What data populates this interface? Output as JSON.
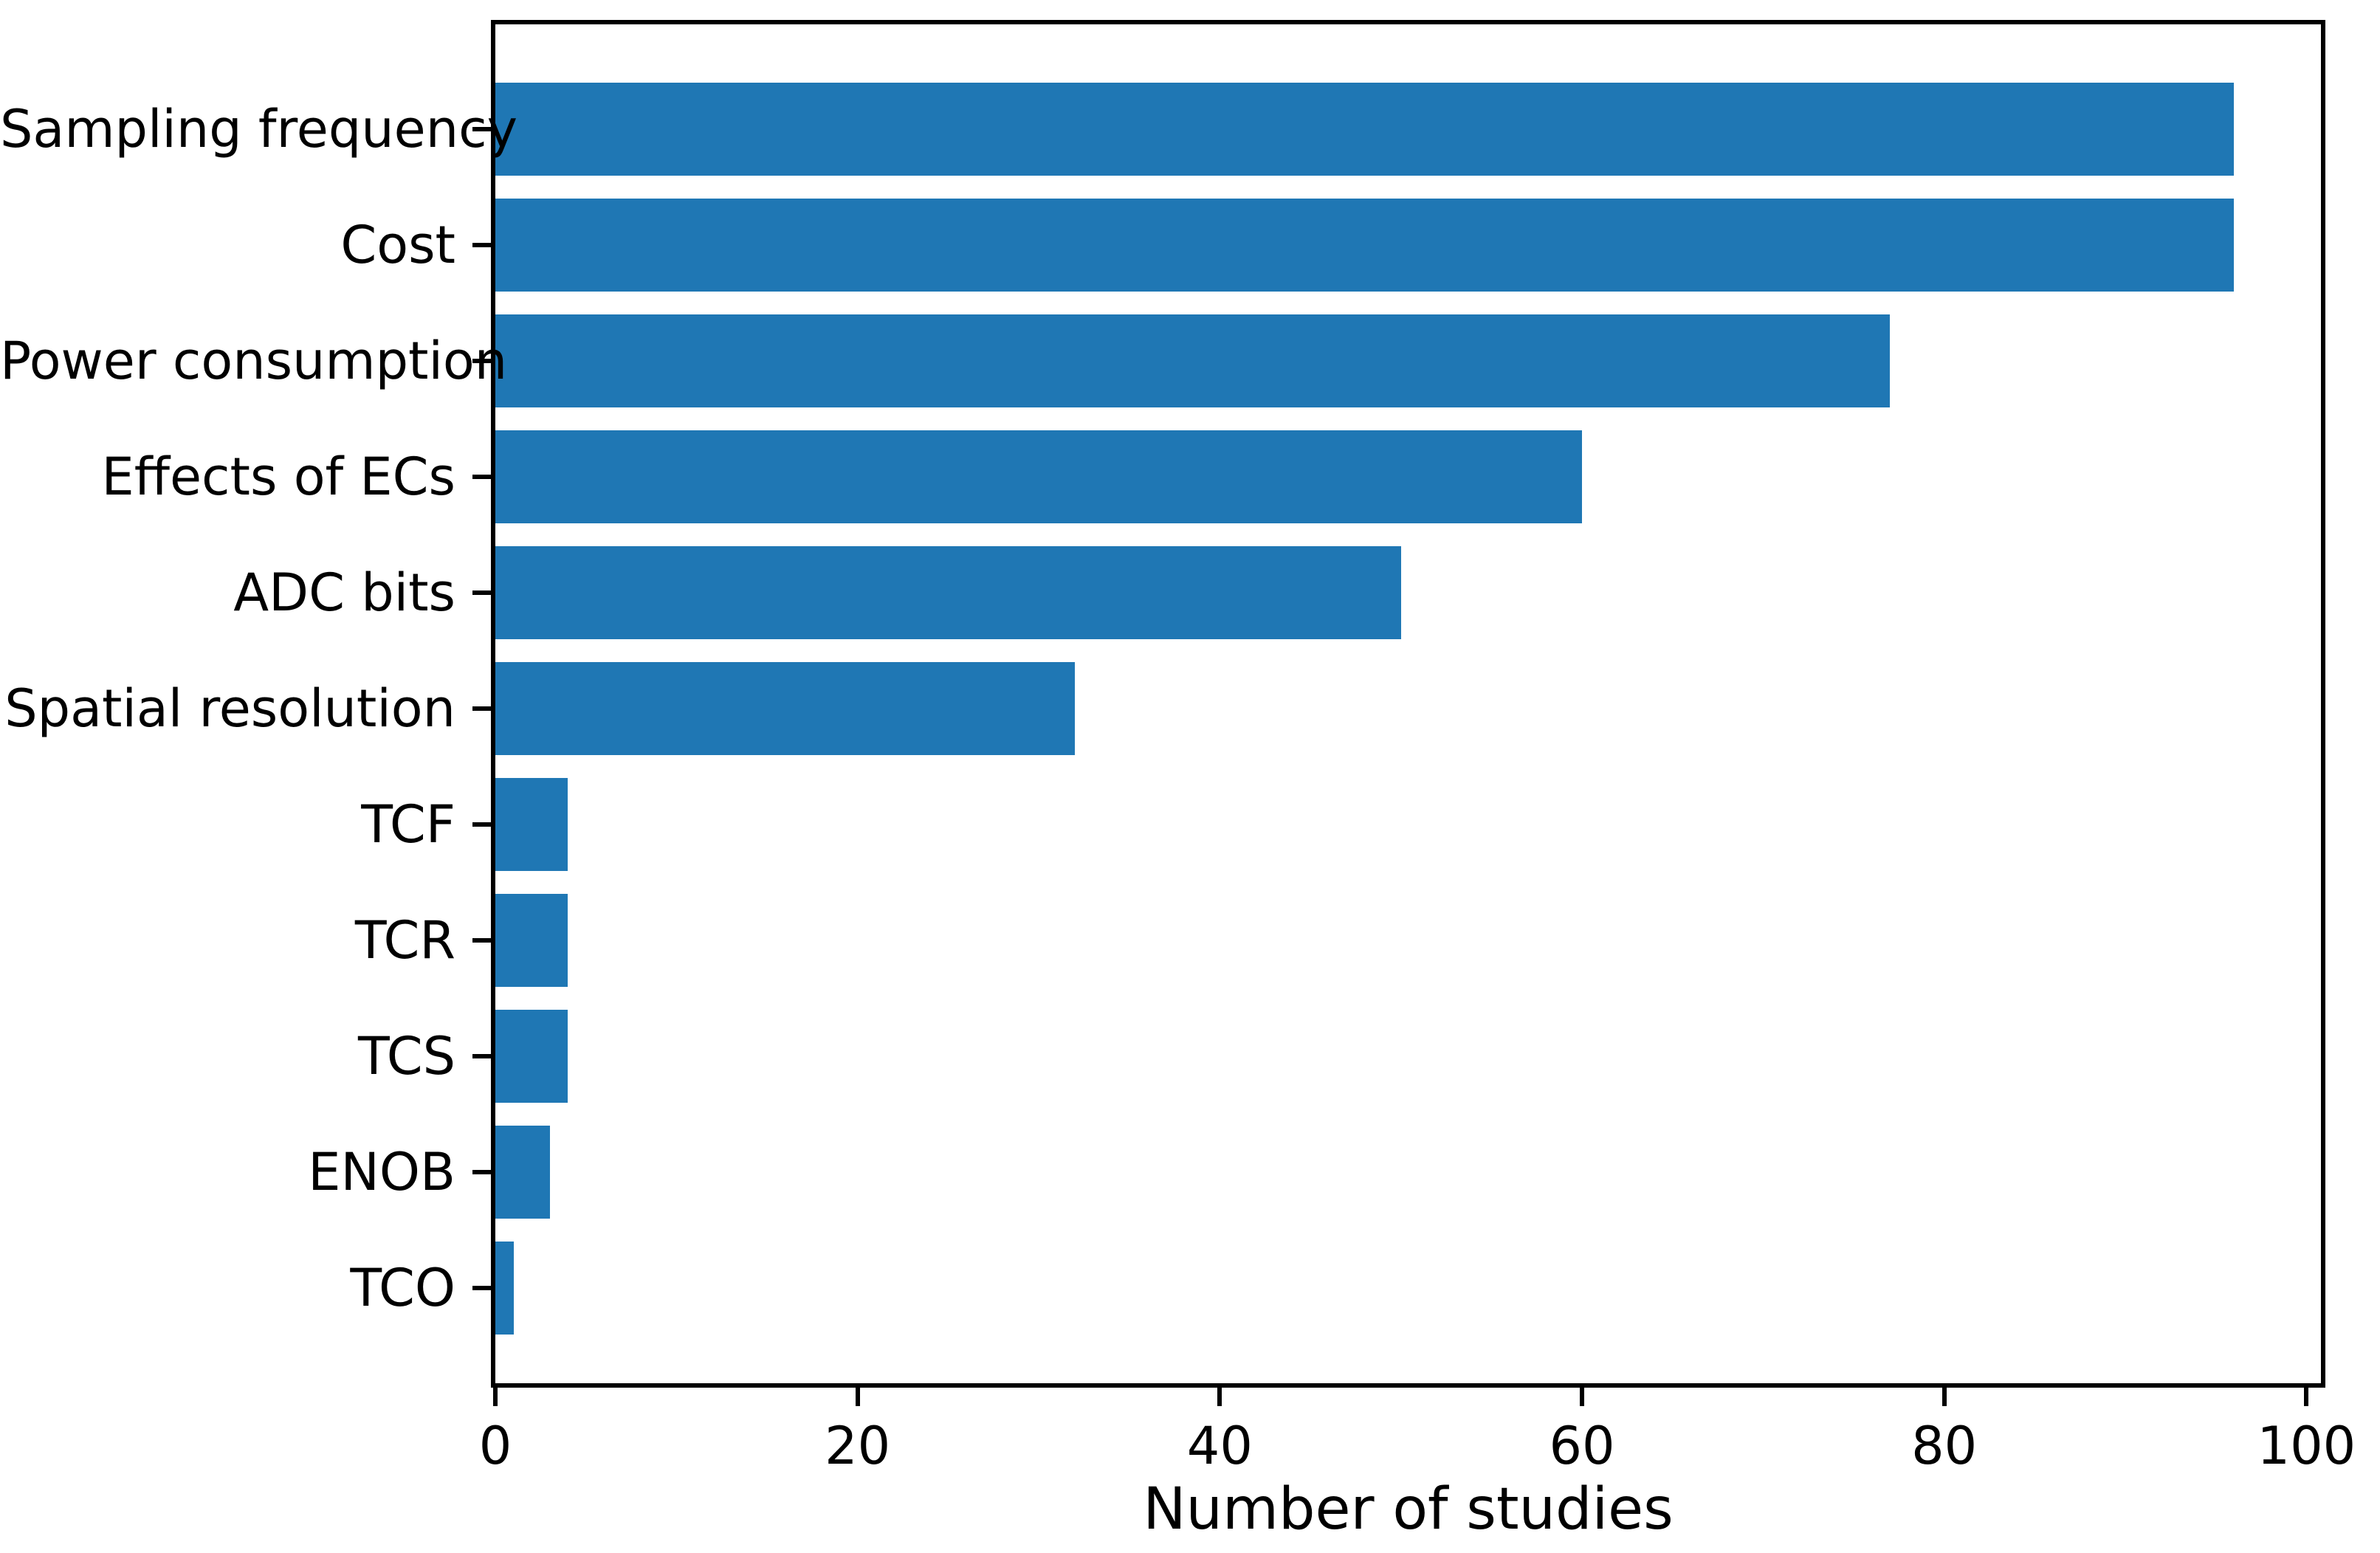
{
  "chart_data": {
    "type": "bar",
    "orientation": "horizontal",
    "title": "",
    "xlabel": "Number of studies",
    "ylabel": "",
    "categories": [
      "Sampling frequency",
      "Cost",
      "Power consumption",
      "Effects of ECs",
      "ADC bits",
      "Spatial resolution",
      "TCF",
      "TCR",
      "TCS",
      "ENOB",
      "TCO"
    ],
    "values": [
      96,
      96,
      77,
      60,
      50,
      32,
      4,
      4,
      4,
      3,
      1
    ],
    "xticks": [
      "0",
      "20",
      "40",
      "60",
      "80",
      "100"
    ],
    "xtick_values": [
      0,
      20,
      40,
      60,
      80,
      100
    ],
    "xlim": [
      0,
      100.8
    ],
    "grid": false,
    "legend_position": "none",
    "bar_color": "#1f77b4",
    "axis_color": "#000000",
    "text_color": "#000000",
    "background_color": "#ffffff"
  }
}
